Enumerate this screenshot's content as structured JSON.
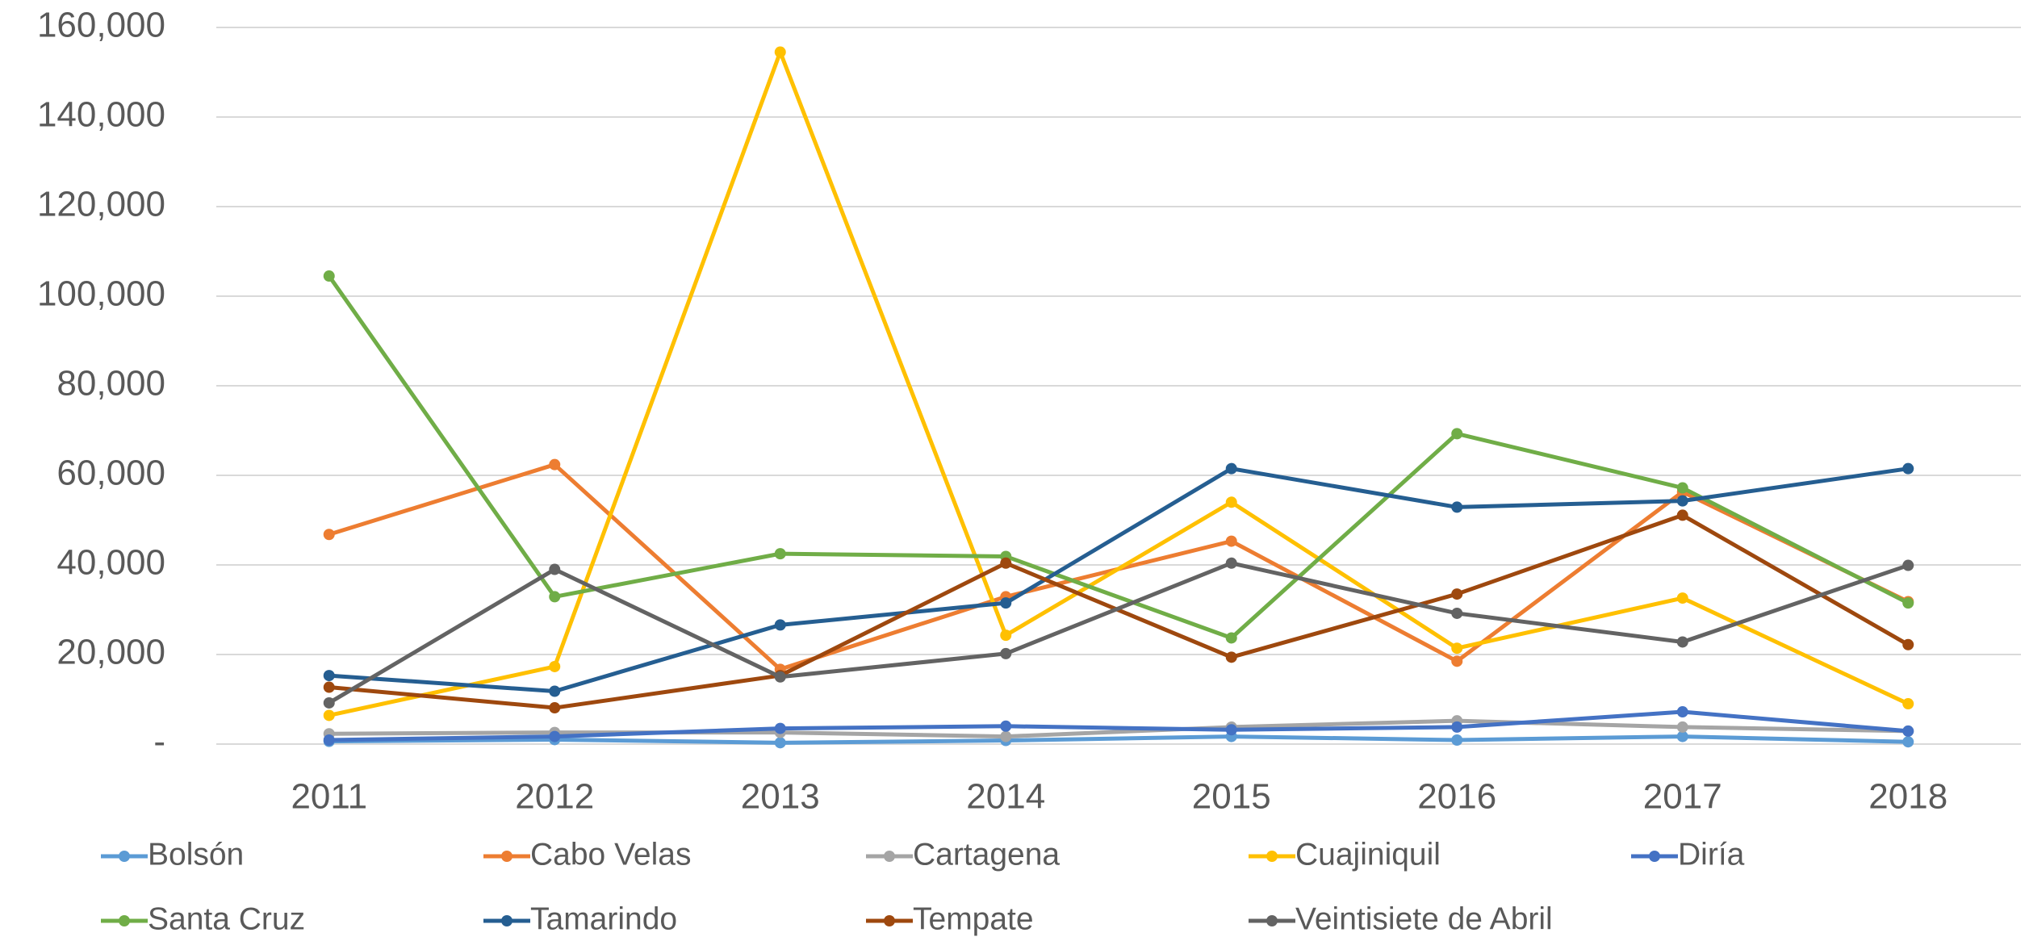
{
  "chart_data": {
    "type": "line",
    "categories": [
      "2011",
      "2012",
      "2013",
      "2014",
      "2015",
      "2016",
      "2017",
      "2018"
    ],
    "series": [
      {
        "name": "Bolsón",
        "color": "#5B9BD5",
        "values": [
          600,
          1000,
          300,
          800,
          1700,
          900,
          1700,
          500
        ]
      },
      {
        "name": "Cabo Velas",
        "color": "#ED7D31",
        "values": [
          46800,
          62400,
          16700,
          32900,
          45300,
          18500,
          56300,
          31800
        ]
      },
      {
        "name": "Cartagena",
        "color": "#A5A5A5",
        "values": [
          2300,
          2600,
          2600,
          1700,
          3800,
          5200,
          3800,
          2900
        ]
      },
      {
        "name": "Cuajiniquil",
        "color": "#FFC000",
        "values": [
          6400,
          17300,
          154500,
          24300,
          54000,
          21400,
          32600,
          9000
        ]
      },
      {
        "name": "Diría",
        "color": "#4472C4",
        "values": [
          900,
          1700,
          3500,
          4000,
          3200,
          3800,
          7200,
          2900
        ]
      },
      {
        "name": "Santa Cruz",
        "color": "#70AD47",
        "values": [
          104500,
          32900,
          42500,
          41900,
          23700,
          69300,
          57200,
          31500
        ]
      },
      {
        "name": "Tamarindo",
        "color": "#255E91",
        "values": [
          15300,
          11800,
          26600,
          31500,
          61500,
          52900,
          54300,
          61500
        ]
      },
      {
        "name": "Tempate",
        "color": "#9E480E",
        "values": [
          12700,
          8100,
          15300,
          40400,
          19400,
          33500,
          51100,
          22200
        ]
      },
      {
        "name": "Veintisiete de Abril",
        "color": "#636363",
        "values": [
          9200,
          39000,
          15000,
          20200,
          40400,
          29200,
          22800,
          39900
        ]
      }
    ],
    "ylim": [
      0,
      160000
    ],
    "yticks": [
      {
        "value": 0,
        "label": "-"
      },
      {
        "value": 20000,
        "label": "20,000"
      },
      {
        "value": 40000,
        "label": "40,000"
      },
      {
        "value": 60000,
        "label": "60,000"
      },
      {
        "value": 80000,
        "label": "80,000"
      },
      {
        "value": 100000,
        "label": "100,000"
      },
      {
        "value": 120000,
        "label": "120,000"
      },
      {
        "value": 140000,
        "label": "140,000"
      },
      {
        "value": 160000,
        "label": "160,000"
      }
    ],
    "grid": true,
    "legend": "bottom"
  }
}
